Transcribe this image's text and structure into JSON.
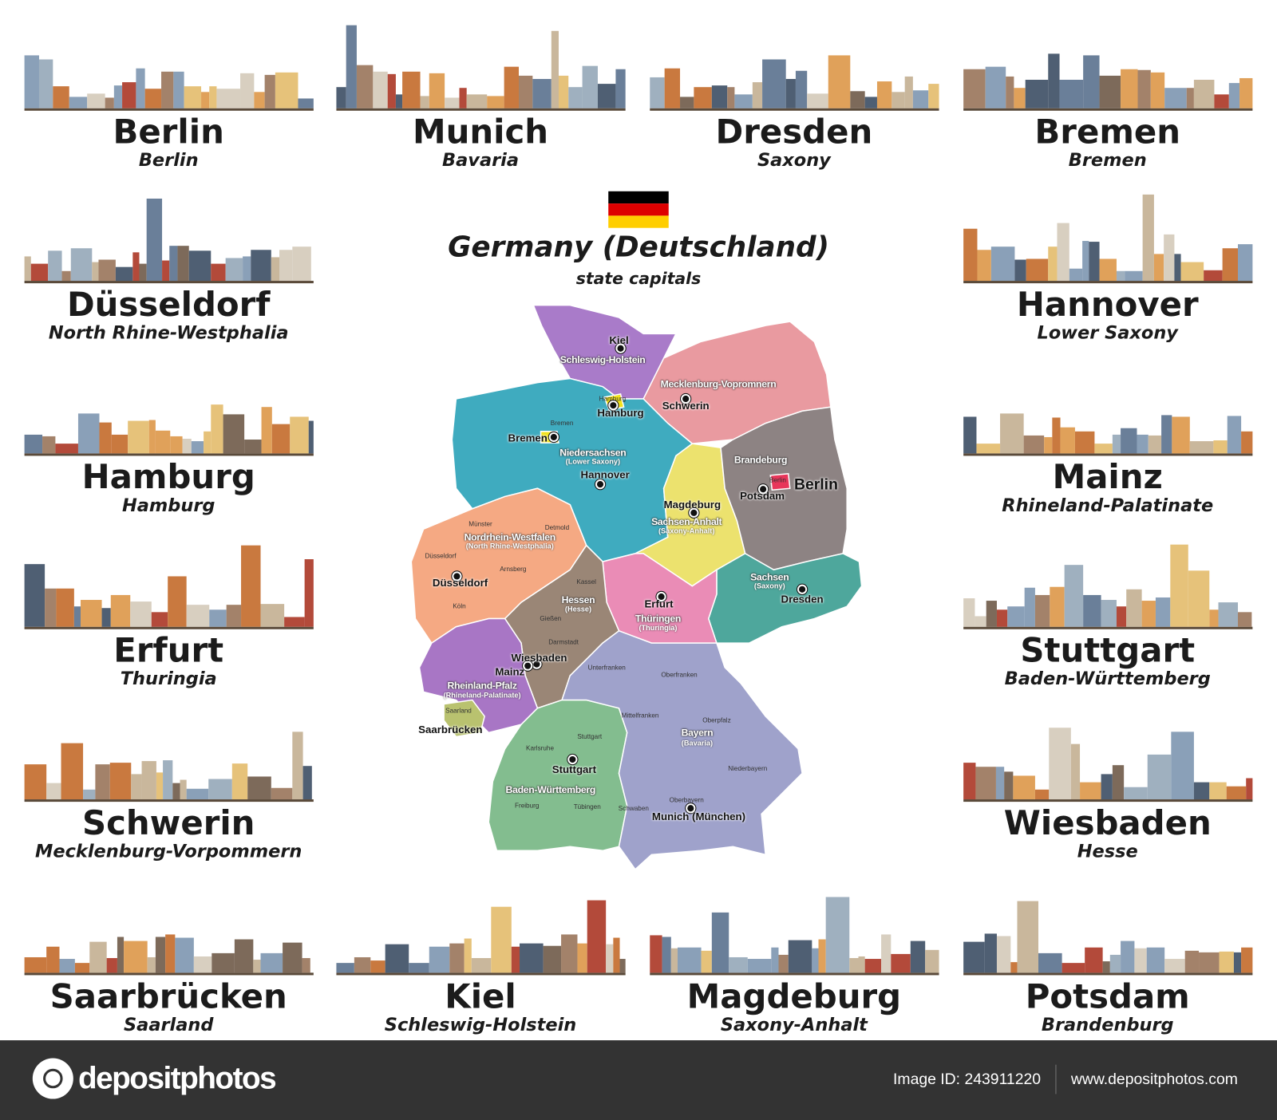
{
  "header": {
    "title": "Germany (Deutschland)",
    "subtitle": "state capitals",
    "flag_colors": [
      "#000000",
      "#dd0000",
      "#ffce00"
    ]
  },
  "cards": [
    {
      "name": "Berlin",
      "state": "Berlin"
    },
    {
      "name": "Munich",
      "state": "Bavaria"
    },
    {
      "name": "Dresden",
      "state": "Saxony"
    },
    {
      "name": "Bremen",
      "state": "Bremen"
    },
    {
      "name": "Düsseldorf",
      "state": "North Rhine-Westphalia"
    },
    {
      "name": "Hannover",
      "state": "Lower Saxony"
    },
    {
      "name": "Hamburg",
      "state": "Hamburg"
    },
    {
      "name": "Mainz",
      "state": "Rhineland-Palatinate"
    },
    {
      "name": "Erfurt",
      "state": "Thuringia"
    },
    {
      "name": "Stuttgart",
      "state": "Baden-Württemberg"
    },
    {
      "name": "Schwerin",
      "state": "Mecklenburg-Vorpommern"
    },
    {
      "name": "Wiesbaden",
      "state": "Hesse"
    },
    {
      "name": "Saarbrücken",
      "state": "Saarland"
    },
    {
      "name": "Kiel",
      "state": "Schleswig-Holstein"
    },
    {
      "name": "Magdeburg",
      "state": "Saxony-Anhalt"
    },
    {
      "name": "Potsdam",
      "state": "Brandenburg"
    }
  ],
  "map": {
    "state_colors": {
      "schleswig-holstein": "#a97bc9",
      "mecklenburg-vorpommern": "#e99aa0",
      "niedersachsen": "#3fabbf",
      "nordrhein-westfalen": "#f5a983",
      "sachsen-anhalt": "#ece26e",
      "brandenburg": "#8d8383",
      "sachsen": "#4ea79c",
      "thueringen": "#ea8cb6",
      "hessen": "#9a8676",
      "rheinland-pfalz": "#a876c5",
      "saarland": "#b9c26f",
      "baden-wuerttemberg": "#83bd8f",
      "bayern": "#9fa2cb",
      "hamburg": "#f2e21c",
      "bremen": "#f2e21c",
      "berlin": "#e8355a"
    },
    "labels": [
      "Kiel",
      "Schleswig-Holstein",
      "Mecklenburg-Vopromnern",
      "Schwerin",
      "Hamburg",
      "Hamburg",
      "Bremen",
      "Bremen",
      "Niedersachsen",
      "(Lower Saxony)",
      "Hannover",
      "Brandeburg",
      "Berlin",
      "Berlin",
      "Potsdam",
      "Magdeburg",
      "Sachsen-Anhalt",
      "(Saxony-Anhalt)",
      "Nordrhein-Westfalen",
      "(North Rhine-Westphalia)",
      "Münster",
      "Detmold",
      "Düsseldorf",
      "Arnsberg",
      "Düsseldorf",
      "Köln",
      "Kassel",
      "Hessen",
      "(Hesse)",
      "Erfurt",
      "Thüringen",
      "(Thuringia)",
      "Sachsen",
      "(Saxony)",
      "Dresden",
      "Gießen",
      "Darmstadt",
      "Wiesbaden",
      "Mainz",
      "Rheinland-Pfalz",
      "(Rhineland-Palatinate)",
      "Unterfranken",
      "Oberfranken",
      "Saarland",
      "Saarbrücken",
      "Mittelfranken",
      "Oberpfalz",
      "Bayern",
      "(Bavaria)",
      "Stuttgart",
      "Karlsruhe",
      "Stuttgart",
      "Niederbayern",
      "Baden-Württemberg",
      "Freiburg",
      "Tübingen",
      "Schwaben",
      "Oberbayern",
      "Munich (München)"
    ]
  },
  "footer": {
    "logo_text": "depositphotos",
    "image_id": "Image ID: 243911220",
    "site": "www.depositphotos.com"
  }
}
